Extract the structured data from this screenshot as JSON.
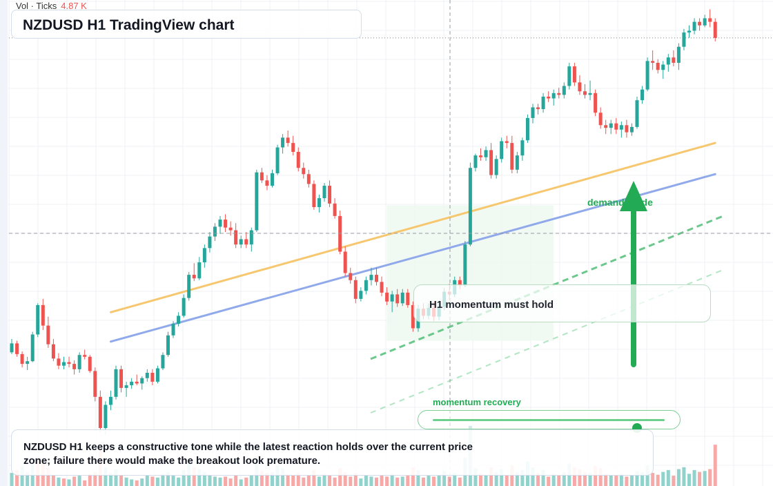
{
  "header": {
    "vol_label": "Vol · Ticks",
    "vol_value": "4.87 K",
    "title": "NZDUSD H1 TradingView chart"
  },
  "annotations": {
    "callout": "H1 momentum must hold",
    "demand_label": "demand guide",
    "slider_label": "momentum recovery",
    "slider_value": 0.88,
    "summary": "NZDUSD H1 keeps a constructive tone while the latest reaction holds over the current price zone; failure there would make the breakout look premature."
  },
  "colors": {
    "up": "#26a69a",
    "down": "#ef5350",
    "vol_up": "#92d2cc",
    "vol_down": "#f7a9a7",
    "trend_upper": "#f6c76e",
    "trend_lower": "#8fa9ea",
    "accent_green": "#22ab54",
    "zone_fill": "#eef9ef"
  },
  "chart_data": {
    "type": "candlestick",
    "symbol": "NZDUSD",
    "timeframe": "H1",
    "candles": [
      [
        0.5705,
        0.572,
        0.5703,
        0.5715
      ],
      [
        0.5715,
        0.5718,
        0.57,
        0.5703
      ],
      [
        0.5703,
        0.5706,
        0.5688,
        0.5692
      ],
      [
        0.5692,
        0.57,
        0.5685,
        0.5695
      ],
      [
        0.5695,
        0.5728,
        0.5694,
        0.5725
      ],
      [
        0.5725,
        0.576,
        0.5722,
        0.5758
      ],
      [
        0.5758,
        0.5765,
        0.573,
        0.5735
      ],
      [
        0.5735,
        0.5745,
        0.571,
        0.5714
      ],
      [
        0.5714,
        0.572,
        0.5695,
        0.5698
      ],
      [
        0.5698,
        0.5704,
        0.5686,
        0.569
      ],
      [
        0.569,
        0.57,
        0.5686,
        0.5694
      ],
      [
        0.5694,
        0.57,
        0.5688,
        0.5692
      ],
      [
        0.5692,
        0.5696,
        0.568,
        0.5686
      ],
      [
        0.5686,
        0.5705,
        0.5682,
        0.5702
      ],
      [
        0.5702,
        0.5708,
        0.5697,
        0.57
      ],
      [
        0.57,
        0.5702,
        0.5682,
        0.5684
      ],
      [
        0.5684,
        0.5688,
        0.565,
        0.5655
      ],
      [
        0.5655,
        0.5662,
        0.5615,
        0.562
      ],
      [
        0.562,
        0.565,
        0.5612,
        0.5646
      ],
      [
        0.5646,
        0.5662,
        0.564,
        0.5655
      ],
      [
        0.5655,
        0.569,
        0.5652,
        0.5686
      ],
      [
        0.5686,
        0.569,
        0.566,
        0.5665
      ],
      [
        0.5665,
        0.5672,
        0.5655,
        0.5668
      ],
      [
        0.5668,
        0.5676,
        0.5664,
        0.5672
      ],
      [
        0.5672,
        0.568,
        0.5668,
        0.567
      ],
      [
        0.567,
        0.5678,
        0.5663,
        0.5676
      ],
      [
        0.5676,
        0.5686,
        0.5672,
        0.5682
      ],
      [
        0.5682,
        0.5686,
        0.5668,
        0.5672
      ],
      [
        0.5672,
        0.569,
        0.567,
        0.5687
      ],
      [
        0.5687,
        0.5705,
        0.5685,
        0.5702
      ],
      [
        0.5702,
        0.5728,
        0.57,
        0.5724
      ],
      [
        0.5724,
        0.574,
        0.5721,
        0.5737
      ],
      [
        0.5737,
        0.575,
        0.5734,
        0.5746
      ],
      [
        0.5746,
        0.577,
        0.5744,
        0.5766
      ],
      [
        0.5766,
        0.5795,
        0.5763,
        0.5792
      ],
      [
        0.5792,
        0.5805,
        0.5785,
        0.5788
      ],
      [
        0.5788,
        0.5812,
        0.5786,
        0.5806
      ],
      [
        0.5806,
        0.5826,
        0.58,
        0.5822
      ],
      [
        0.5822,
        0.584,
        0.5817,
        0.5835
      ],
      [
        0.5835,
        0.585,
        0.583,
        0.5846
      ],
      [
        0.5846,
        0.5858,
        0.5838,
        0.5854
      ],
      [
        0.5854,
        0.586,
        0.584,
        0.5845
      ],
      [
        0.5845,
        0.5852,
        0.5836,
        0.5842
      ],
      [
        0.5842,
        0.585,
        0.5822,
        0.5826
      ],
      [
        0.5826,
        0.5836,
        0.5822,
        0.5832
      ],
      [
        0.5832,
        0.584,
        0.5822,
        0.5826
      ],
      [
        0.5826,
        0.5845,
        0.5818,
        0.5842
      ],
      [
        0.5842,
        0.591,
        0.584,
        0.5907
      ],
      [
        0.5907,
        0.5912,
        0.5895,
        0.5898
      ],
      [
        0.5898,
        0.5904,
        0.5887,
        0.5892
      ],
      [
        0.5892,
        0.591,
        0.589,
        0.5906
      ],
      [
        0.5906,
        0.5938,
        0.5904,
        0.5935
      ],
      [
        0.5935,
        0.595,
        0.5928,
        0.5946
      ],
      [
        0.5946,
        0.5954,
        0.5936,
        0.594
      ],
      [
        0.594,
        0.5948,
        0.5926,
        0.593
      ],
      [
        0.593,
        0.5935,
        0.5908,
        0.5912
      ],
      [
        0.5912,
        0.5918,
        0.59,
        0.5905
      ],
      [
        0.5905,
        0.591,
        0.589,
        0.5894
      ],
      [
        0.5894,
        0.5898,
        0.5865,
        0.5868
      ],
      [
        0.5868,
        0.5882,
        0.5862,
        0.5878
      ],
      [
        0.5878,
        0.5895,
        0.5874,
        0.5892
      ],
      [
        0.5892,
        0.5898,
        0.5868,
        0.5872
      ],
      [
        0.5872,
        0.5878,
        0.5855,
        0.5858
      ],
      [
        0.5858,
        0.5864,
        0.5815,
        0.5818
      ],
      [
        0.5818,
        0.5824,
        0.579,
        0.5794
      ],
      [
        0.5794,
        0.58,
        0.5782,
        0.5786
      ],
      [
        0.5786,
        0.579,
        0.576,
        0.5765
      ],
      [
        0.5765,
        0.5778,
        0.5762,
        0.5774
      ],
      [
        0.5774,
        0.579,
        0.577,
        0.5786
      ],
      [
        0.5786,
        0.58,
        0.578,
        0.5792
      ],
      [
        0.5792,
        0.58,
        0.578,
        0.5784
      ],
      [
        0.5784,
        0.579,
        0.5768,
        0.5772
      ],
      [
        0.5772,
        0.5778,
        0.5758,
        0.5762
      ],
      [
        0.5762,
        0.5774,
        0.575,
        0.577
      ],
      [
        0.577,
        0.5776,
        0.5756,
        0.576
      ],
      [
        0.576,
        0.5776,
        0.5757,
        0.5772
      ],
      [
        0.5772,
        0.5776,
        0.5755,
        0.5758
      ],
      [
        0.5758,
        0.5762,
        0.5728,
        0.5732
      ],
      [
        0.5732,
        0.5758,
        0.5728,
        0.5754
      ],
      [
        0.5754,
        0.576,
        0.5742,
        0.5746
      ],
      [
        0.5746,
        0.576,
        0.5742,
        0.5755
      ],
      [
        0.5755,
        0.5762,
        0.574,
        0.5745
      ],
      [
        0.5745,
        0.576,
        0.5741,
        0.5756
      ],
      [
        0.5756,
        0.5777,
        0.5752,
        0.5773
      ],
      [
        0.5773,
        0.5782,
        0.5764,
        0.577
      ],
      [
        0.577,
        0.579,
        0.5767,
        0.5786
      ],
      [
        0.5786,
        0.579,
        0.5776,
        0.578
      ],
      [
        0.578,
        0.583,
        0.5778,
        0.5826
      ],
      [
        0.5826,
        0.5918,
        0.5824,
        0.5912
      ],
      [
        0.5912,
        0.5928,
        0.5908,
        0.5926
      ],
      [
        0.5926,
        0.5934,
        0.592,
        0.5924
      ],
      [
        0.5924,
        0.5936,
        0.592,
        0.5932
      ],
      [
        0.5932,
        0.594,
        0.59,
        0.5904
      ],
      [
        0.5904,
        0.5926,
        0.59,
        0.5922
      ],
      [
        0.5922,
        0.5946,
        0.5918,
        0.5942
      ],
      [
        0.5942,
        0.5948,
        0.5934,
        0.594
      ],
      [
        0.594,
        0.5948,
        0.5906,
        0.591
      ],
      [
        0.591,
        0.593,
        0.5906,
        0.5926
      ],
      [
        0.5926,
        0.5946,
        0.592,
        0.5943
      ],
      [
        0.5943,
        0.5972,
        0.594,
        0.5968
      ],
      [
        0.5968,
        0.5984,
        0.5962,
        0.598
      ],
      [
        0.598,
        0.5984,
        0.5972,
        0.5978
      ],
      [
        0.5978,
        0.5996,
        0.5974,
        0.5992
      ],
      [
        0.5992,
        0.5998,
        0.5986,
        0.599
      ],
      [
        0.599,
        0.6,
        0.5982,
        0.5996
      ],
      [
        0.5996,
        0.6002,
        0.599,
        0.5994
      ],
      [
        0.5994,
        0.6008,
        0.599,
        0.6004
      ],
      [
        0.6004,
        0.603,
        0.6,
        0.6026
      ],
      [
        0.6026,
        0.603,
        0.6004,
        0.6008
      ],
      [
        0.6008,
        0.6016,
        0.5994,
        0.5998
      ],
      [
        0.5998,
        0.6006,
        0.599,
        0.5994
      ],
      [
        0.5994,
        0.601,
        0.5988,
        0.5996
      ],
      [
        0.5996,
        0.6,
        0.597,
        0.5974
      ],
      [
        0.5974,
        0.598,
        0.5956,
        0.596
      ],
      [
        0.596,
        0.5966,
        0.595,
        0.5957
      ],
      [
        0.5957,
        0.5966,
        0.595,
        0.5962
      ],
      [
        0.5962,
        0.5968,
        0.595,
        0.5955
      ],
      [
        0.5955,
        0.5964,
        0.5946,
        0.596
      ],
      [
        0.596,
        0.5966,
        0.5946,
        0.5952
      ],
      [
        0.5952,
        0.5962,
        0.5948,
        0.5958
      ],
      [
        0.5958,
        0.5992,
        0.5956,
        0.5988
      ],
      [
        0.5988,
        0.6004,
        0.5984,
        0.6
      ],
      [
        0.6,
        0.6036,
        0.5998,
        0.6032
      ],
      [
        0.6032,
        0.6044,
        0.6022,
        0.603
      ],
      [
        0.603,
        0.6034,
        0.6018,
        0.6022
      ],
      [
        0.6022,
        0.6032,
        0.6012,
        0.6028
      ],
      [
        0.6028,
        0.604,
        0.602,
        0.6036
      ],
      [
        0.6036,
        0.6044,
        0.6026,
        0.603
      ],
      [
        0.603,
        0.6052,
        0.6022,
        0.6048
      ],
      [
        0.6048,
        0.6068,
        0.6044,
        0.6064
      ],
      [
        0.6064,
        0.6072,
        0.6058,
        0.6066
      ],
      [
        0.6066,
        0.608,
        0.6062,
        0.6076
      ],
      [
        0.6076,
        0.608,
        0.6066,
        0.6072
      ],
      [
        0.6072,
        0.6084,
        0.607,
        0.608
      ],
      [
        0.608,
        0.609,
        0.607,
        0.6076
      ],
      [
        0.6076,
        0.608,
        0.6054,
        0.6058
      ]
    ],
    "volume": [
      [
        28,
        "up"
      ],
      [
        34,
        "down"
      ],
      [
        42,
        "up"
      ],
      [
        30,
        "up"
      ],
      [
        46,
        "up"
      ],
      [
        62,
        "down"
      ],
      [
        52,
        "down"
      ],
      [
        38,
        "down"
      ],
      [
        24,
        "down"
      ],
      [
        18,
        "up"
      ],
      [
        16,
        "down"
      ],
      [
        14,
        "up"
      ],
      [
        20,
        "down"
      ],
      [
        22,
        "up"
      ],
      [
        12,
        "down"
      ],
      [
        26,
        "down"
      ],
      [
        30,
        "down"
      ],
      [
        78,
        "down"
      ],
      [
        40,
        "up"
      ],
      [
        28,
        "up"
      ],
      [
        36,
        "up"
      ],
      [
        24,
        "down"
      ],
      [
        18,
        "up"
      ],
      [
        14,
        "up"
      ],
      [
        12,
        "down"
      ],
      [
        16,
        "up"
      ],
      [
        22,
        "up"
      ],
      [
        20,
        "down"
      ],
      [
        18,
        "up"
      ],
      [
        26,
        "up"
      ],
      [
        30,
        "up"
      ],
      [
        22,
        "up"
      ],
      [
        18,
        "up"
      ],
      [
        34,
        "up"
      ],
      [
        48,
        "up"
      ],
      [
        40,
        "down"
      ],
      [
        36,
        "up"
      ],
      [
        30,
        "up"
      ],
      [
        24,
        "up"
      ],
      [
        20,
        "up"
      ],
      [
        18,
        "up"
      ],
      [
        20,
        "down"
      ],
      [
        16,
        "down"
      ],
      [
        22,
        "down"
      ],
      [
        14,
        "up"
      ],
      [
        18,
        "down"
      ],
      [
        24,
        "up"
      ],
      [
        56,
        "up"
      ],
      [
        32,
        "down"
      ],
      [
        28,
        "down"
      ],
      [
        30,
        "up"
      ],
      [
        44,
        "up"
      ],
      [
        38,
        "up"
      ],
      [
        26,
        "down"
      ],
      [
        22,
        "down"
      ],
      [
        28,
        "down"
      ],
      [
        18,
        "down"
      ],
      [
        24,
        "down"
      ],
      [
        34,
        "down"
      ],
      [
        20,
        "up"
      ],
      [
        26,
        "up"
      ],
      [
        22,
        "down"
      ],
      [
        18,
        "down"
      ],
      [
        38,
        "down"
      ],
      [
        30,
        "down"
      ],
      [
        20,
        "down"
      ],
      [
        28,
        "down"
      ],
      [
        16,
        "up"
      ],
      [
        24,
        "up"
      ],
      [
        20,
        "up"
      ],
      [
        18,
        "down"
      ],
      [
        22,
        "down"
      ],
      [
        20,
        "down"
      ],
      [
        26,
        "up"
      ],
      [
        18,
        "down"
      ],
      [
        20,
        "up"
      ],
      [
        22,
        "down"
      ],
      [
        40,
        "down"
      ],
      [
        34,
        "up"
      ],
      [
        18,
        "down"
      ],
      [
        22,
        "up"
      ],
      [
        20,
        "down"
      ],
      [
        24,
        "up"
      ],
      [
        32,
        "up"
      ],
      [
        20,
        "down"
      ],
      [
        28,
        "up"
      ],
      [
        18,
        "down"
      ],
      [
        60,
        "up"
      ],
      [
        128,
        "up"
      ],
      [
        38,
        "up"
      ],
      [
        26,
        "down"
      ],
      [
        24,
        "up"
      ],
      [
        40,
        "down"
      ],
      [
        30,
        "up"
      ],
      [
        36,
        "up"
      ],
      [
        22,
        "down"
      ],
      [
        44,
        "down"
      ],
      [
        30,
        "up"
      ],
      [
        34,
        "up"
      ],
      [
        52,
        "up"
      ],
      [
        40,
        "up"
      ],
      [
        28,
        "down"
      ],
      [
        34,
        "up"
      ],
      [
        20,
        "down"
      ],
      [
        26,
        "up"
      ],
      [
        22,
        "down"
      ],
      [
        30,
        "up"
      ],
      [
        48,
        "up"
      ],
      [
        40,
        "down"
      ],
      [
        36,
        "down"
      ],
      [
        30,
        "down"
      ],
      [
        28,
        "up"
      ],
      [
        42,
        "down"
      ],
      [
        38,
        "down"
      ],
      [
        26,
        "down"
      ],
      [
        24,
        "up"
      ],
      [
        22,
        "down"
      ],
      [
        26,
        "up"
      ],
      [
        20,
        "down"
      ],
      [
        24,
        "up"
      ],
      [
        32,
        "up"
      ],
      [
        30,
        "up"
      ],
      [
        44,
        "up"
      ],
      [
        28,
        "down"
      ],
      [
        24,
        "down"
      ],
      [
        30,
        "up"
      ],
      [
        34,
        "up"
      ],
      [
        22,
        "down"
      ],
      [
        36,
        "up"
      ],
      [
        40,
        "up"
      ],
      [
        26,
        "up"
      ],
      [
        34,
        "up"
      ],
      [
        30,
        "down"
      ],
      [
        32,
        "up"
      ],
      [
        36,
        "down"
      ],
      [
        88,
        "down"
      ]
    ],
    "last_price": 0.6058,
    "trend_lines": [
      {
        "role": "upper",
        "from": [
          0,
          0.575
        ],
        "to": [
          135,
          0.594
        ]
      },
      {
        "role": "lower",
        "from": [
          0,
          0.5717
        ],
        "to": [
          135,
          0.5905
        ]
      }
    ],
    "demand_zone": {
      "from_bar": 72,
      "to_bar": 104,
      "top": 0.587,
      "bottom": 0.5718
    }
  }
}
